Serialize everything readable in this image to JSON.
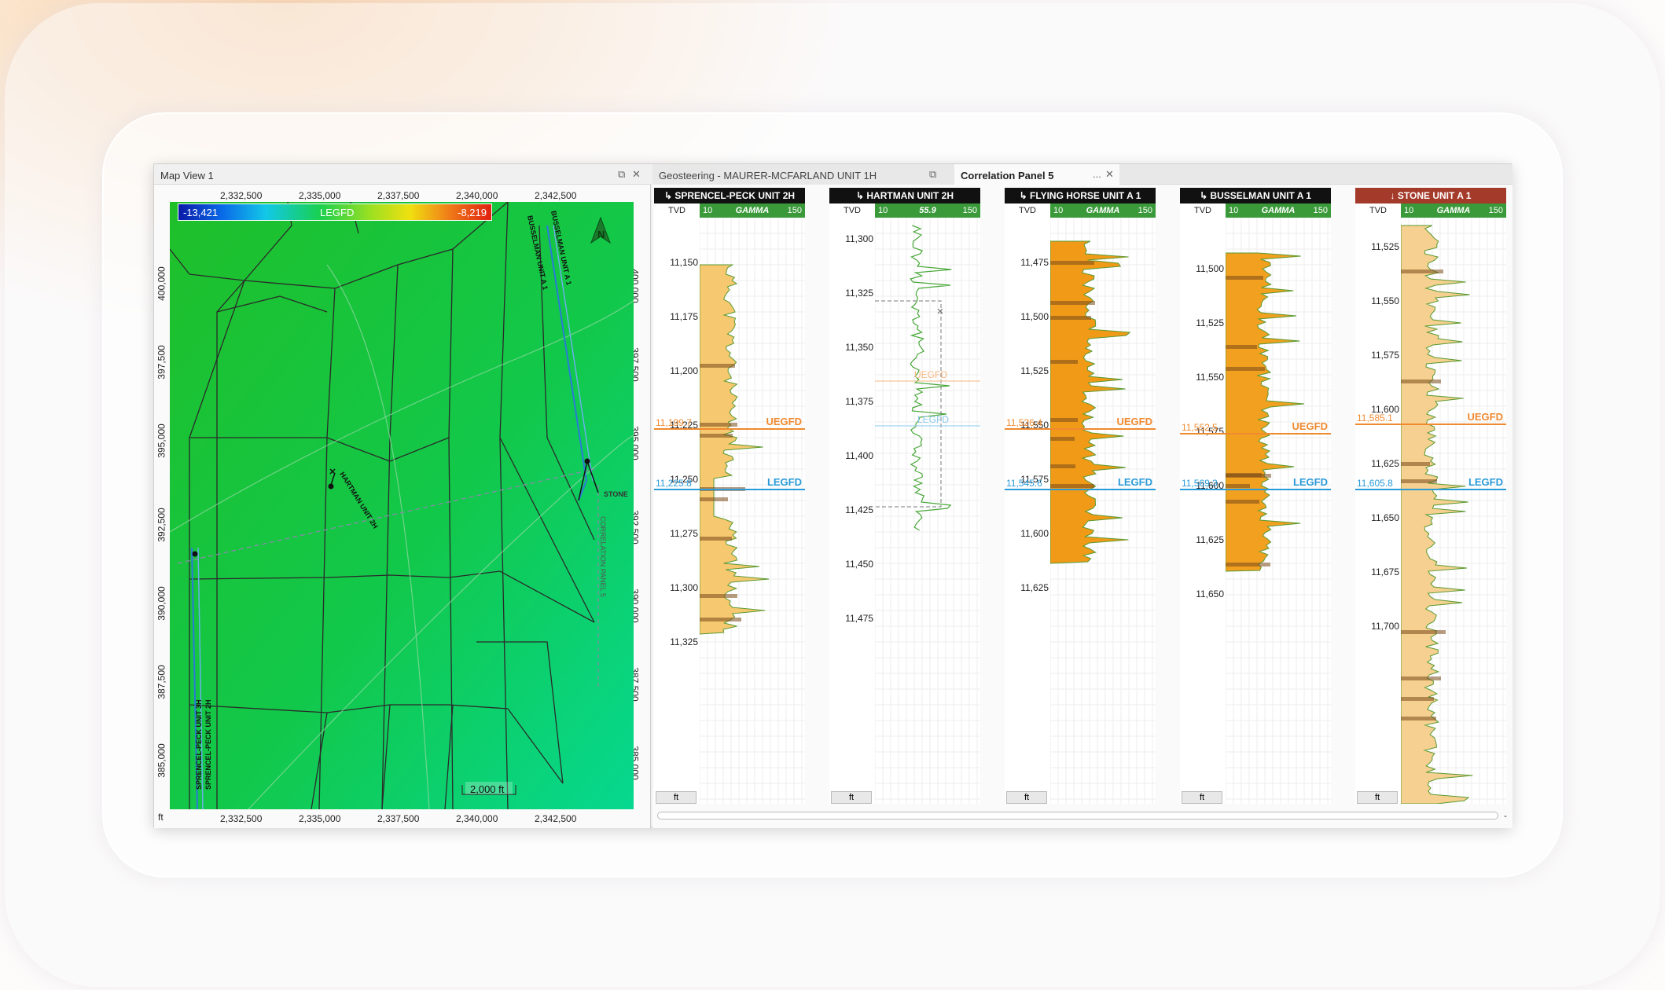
{
  "map": {
    "title": "Map View 1",
    "xticks": [
      "2,332,500",
      "2,335,000",
      "2,337,500",
      "2,340,000",
      "2,342,500"
    ],
    "yticks_left": [
      "400,000",
      "397,500",
      "395,000",
      "392,500",
      "390,000",
      "387,500",
      "385,000"
    ],
    "yticks_right": [
      "400,000",
      "397,500",
      "395,000",
      "392,500",
      "390,000",
      "387,500",
      "385,000"
    ],
    "legend": {
      "min": "-13,421",
      "label": "LEGFD",
      "max": "-8,219"
    },
    "scale": "2,000 ft",
    "unit": "ft",
    "wells": {
      "hartman": "HARTMAN UNIT 2H",
      "busselman": "BUSSELMAN UNIT A 1",
      "stone": "STONE",
      "sprencel2": "SPRENCEL-PECK UNIT 2H",
      "sprencel3": "SPRENCEL-PECK UNIT 3H",
      "corr": "CORRELATION PANEL 5"
    },
    "north": "N"
  },
  "tabs": {
    "geo": "Geosteering - MAURER-MCFARLAND UNIT 1H",
    "corr": "Correlation Panel 5",
    "more": "..."
  },
  "tracks": [
    {
      "name": "SPRENCEL-PECK UNIT 2H",
      "color": "#111111",
      "tvd": "TVD",
      "g_min": "10",
      "g_label": "GAMMA",
      "g_max": "150",
      "unit": "ft",
      "depths": [
        "11,150",
        "11,175",
        "11,200",
        "11,225",
        "11,250",
        "11,275",
        "11,300",
        "11,325"
      ],
      "uegfd": "11,199.7",
      "legfd": "11,225.8"
    },
    {
      "name": "HARTMAN UNIT 2H",
      "color": "#111111",
      "tvd": "TVD",
      "g_min": "10",
      "g_label": "55.9",
      "g_max": "150",
      "unit": "ft",
      "depths": [
        "11,300",
        "11,325",
        "11,350",
        "11,375",
        "11,400",
        "11,425",
        "11,450",
        "11,475"
      ],
      "uegfd": "",
      "legfd": ""
    },
    {
      "name": "FLYING HORSE UNIT A 1",
      "color": "#111111",
      "tvd": "TVD",
      "g_min": "10",
      "g_label": "GAMMA",
      "g_max": "150",
      "unit": "ft",
      "depths": [
        "11,475",
        "11,500",
        "11,525",
        "11,550",
        "11,575",
        "11,600",
        "11,625"
      ],
      "uegfd": "11,526.4",
      "legfd": "11,545.6"
    },
    {
      "name": "BUSSELMAN UNIT A 1",
      "color": "#111111",
      "tvd": "TVD",
      "g_min": "10",
      "g_label": "GAMMA",
      "g_max": "150",
      "unit": "ft",
      "depths": [
        "11,500",
        "11,525",
        "11,550",
        "11,575",
        "11,600",
        "11,625",
        "11,650"
      ],
      "uegfd": "11,552.5",
      "legfd": "11,569.3"
    },
    {
      "name": "STONE UNIT A 1",
      "color": "#a33a2a",
      "tvd": "TVD",
      "g_min": "10",
      "g_label": "GAMMA",
      "g_max": "150",
      "unit": "ft",
      "depths": [
        "11,525",
        "11,550",
        "11,575",
        "11,600",
        "11,625",
        "11,650",
        "11,675",
        "11,700"
      ],
      "uegfd": "11,585.1",
      "legfd": "11,605.8"
    }
  ],
  "picks": {
    "uegfd": "UEGFD",
    "legfd": "LEGFD"
  },
  "colors": {
    "uegfd": "#f08a30",
    "legfd": "#2a9ad8",
    "gamma_bar": "#3a9a3a"
  }
}
